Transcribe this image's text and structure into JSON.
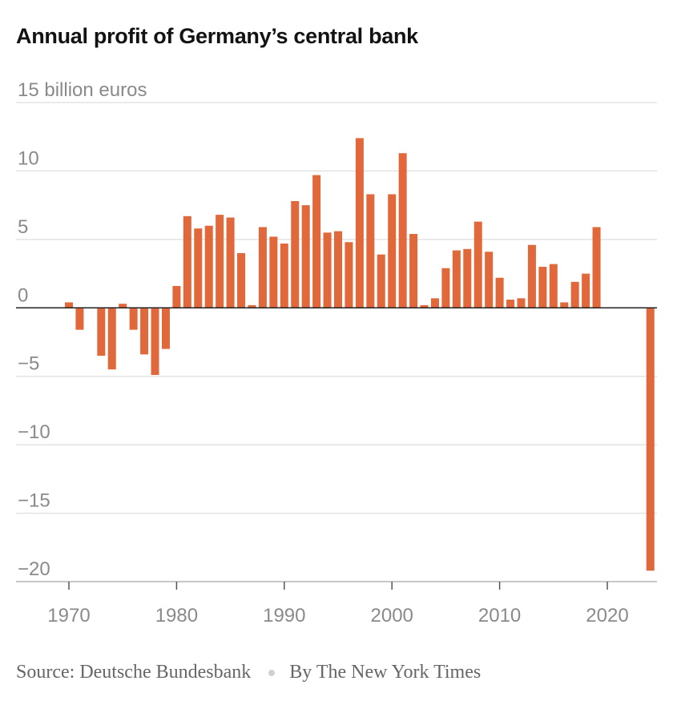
{
  "chart_data": {
    "type": "bar",
    "title": "Annual profit of Germany’s central bank",
    "ylabel": "billion euros",
    "xlabel": "",
    "ylim": [
      -20,
      15
    ],
    "xlim": [
      1965,
      2025
    ],
    "y_ticks": [
      {
        "value": 15,
        "label": "15 billion euros"
      },
      {
        "value": 10,
        "label": "10"
      },
      {
        "value": 5,
        "label": "5"
      },
      {
        "value": 0,
        "label": "0"
      },
      {
        "value": -5,
        "label": "−5"
      },
      {
        "value": -10,
        "label": "−10"
      },
      {
        "value": -15,
        "label": "−15"
      },
      {
        "value": -20,
        "label": "−20"
      }
    ],
    "x_ticks": [
      {
        "value": 1970,
        "label": "1970"
      },
      {
        "value": 1980,
        "label": "1980"
      },
      {
        "value": 1990,
        "label": "1990"
      },
      {
        "value": 2000,
        "label": "2000"
      },
      {
        "value": 2010,
        "label": "2010"
      },
      {
        "value": 2020,
        "label": "2020"
      }
    ],
    "bar_color": "#e0683a",
    "points": [
      {
        "x": 1970,
        "y": 0.4
      },
      {
        "x": 1971,
        "y": -1.6
      },
      {
        "x": 1973,
        "y": -3.5
      },
      {
        "x": 1974,
        "y": -4.5
      },
      {
        "x": 1975,
        "y": 0.3
      },
      {
        "x": 1976,
        "y": -1.6
      },
      {
        "x": 1977,
        "y": -3.4
      },
      {
        "x": 1978,
        "y": -4.9
      },
      {
        "x": 1979,
        "y": -3.0
      },
      {
        "x": 1980,
        "y": 1.6
      },
      {
        "x": 1981,
        "y": 6.7
      },
      {
        "x": 1982,
        "y": 5.8
      },
      {
        "x": 1983,
        "y": 6.0
      },
      {
        "x": 1984,
        "y": 6.8
      },
      {
        "x": 1985,
        "y": 6.6
      },
      {
        "x": 1986,
        "y": 4.0
      },
      {
        "x": 1987,
        "y": 0.2
      },
      {
        "x": 1988,
        "y": 5.9
      },
      {
        "x": 1989,
        "y": 5.2
      },
      {
        "x": 1990,
        "y": 4.7
      },
      {
        "x": 1991,
        "y": 7.8
      },
      {
        "x": 1992,
        "y": 7.5
      },
      {
        "x": 1993,
        "y": 9.7
      },
      {
        "x": 1994,
        "y": 5.5
      },
      {
        "x": 1995,
        "y": 5.6
      },
      {
        "x": 1996,
        "y": 4.8
      },
      {
        "x": 1997,
        "y": 12.4
      },
      {
        "x": 1998,
        "y": 8.3
      },
      {
        "x": 1999,
        "y": 3.9
      },
      {
        "x": 2000,
        "y": 8.3
      },
      {
        "x": 2001,
        "y": 11.3
      },
      {
        "x": 2002,
        "y": 5.4
      },
      {
        "x": 2003,
        "y": 0.2
      },
      {
        "x": 2004,
        "y": 0.7
      },
      {
        "x": 2005,
        "y": 2.9
      },
      {
        "x": 2006,
        "y": 4.2
      },
      {
        "x": 2007,
        "y": 4.3
      },
      {
        "x": 2008,
        "y": 6.3
      },
      {
        "x": 2009,
        "y": 4.1
      },
      {
        "x": 2010,
        "y": 2.2
      },
      {
        "x": 2011,
        "y": 0.6
      },
      {
        "x": 2012,
        "y": 0.7
      },
      {
        "x": 2013,
        "y": 4.6
      },
      {
        "x": 2014,
        "y": 3.0
      },
      {
        "x": 2015,
        "y": 3.2
      },
      {
        "x": 2016,
        "y": 0.4
      },
      {
        "x": 2017,
        "y": 1.9
      },
      {
        "x": 2018,
        "y": 2.5
      },
      {
        "x": 2019,
        "y": 5.9
      },
      {
        "x": 2024,
        "y": -19.2
      }
    ]
  },
  "footer": {
    "source": "Source: Deutsche Bundesbank",
    "credit": "By The New York Times"
  }
}
